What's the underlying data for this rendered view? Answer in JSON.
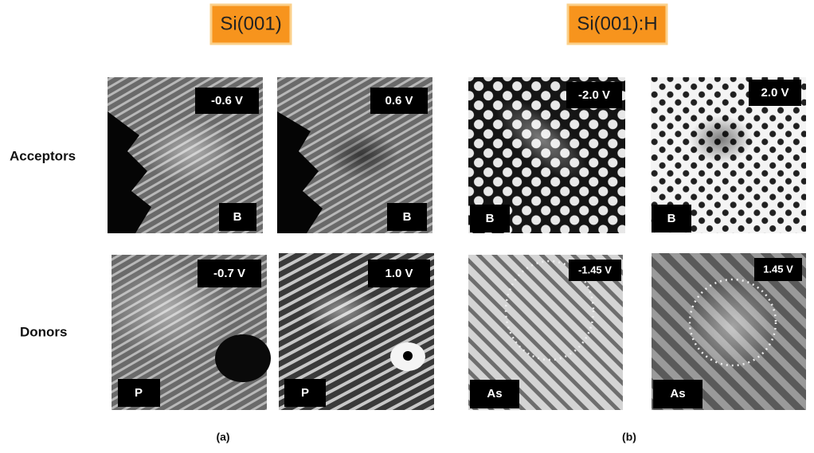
{
  "panels": [
    {
      "title": "Si(001)",
      "caption": "(a)",
      "images": [
        {
          "voltage": "-0.6 V",
          "dopant": "B"
        },
        {
          "voltage": "0.6 V",
          "dopant": "B"
        },
        {
          "voltage": "-0.7 V",
          "dopant": "P"
        },
        {
          "voltage": "1.0 V",
          "dopant": "P"
        }
      ]
    },
    {
      "title": "Si(001):H",
      "caption": "(b)",
      "images": [
        {
          "voltage": "-2.0 V",
          "dopant": "B"
        },
        {
          "voltage": "2.0 V",
          "dopant": "B"
        },
        {
          "voltage": "-1.45 V",
          "dopant": "As"
        },
        {
          "voltage": "1.45 V",
          "dopant": "As"
        }
      ]
    }
  ],
  "rows": [
    "Acceptors",
    "Donors"
  ]
}
